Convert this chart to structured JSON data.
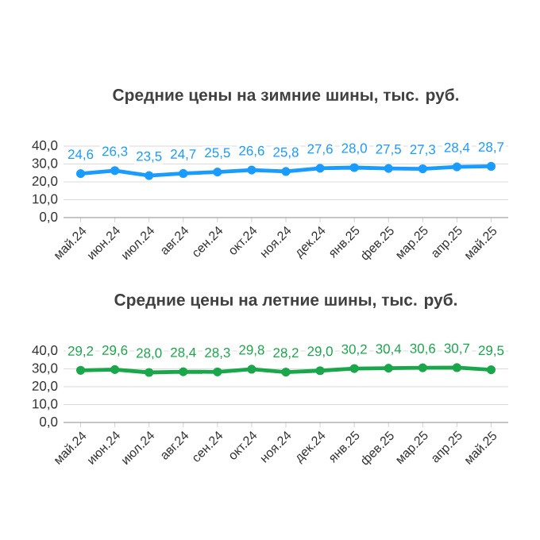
{
  "chart_data": [
    {
      "type": "line",
      "title": "Средние цены на зимние шины, тыс. руб.",
      "categories": [
        "май.24",
        "июн.24",
        "июл.24",
        "авг.24",
        "сен.24",
        "окт.24",
        "ноя.24",
        "дек.24",
        "янв.25",
        "фев.25",
        "мар.25",
        "апр.25",
        "май.25"
      ],
      "values": [
        24.6,
        26.3,
        23.5,
        24.7,
        25.5,
        26.6,
        25.8,
        27.6,
        28.0,
        27.5,
        27.3,
        28.4,
        28.7
      ],
      "value_labels": [
        "24,6",
        "26,3",
        "23,5",
        "24,7",
        "25,5",
        "26,6",
        "25,8",
        "27,6",
        "28,0",
        "27,5",
        "27,3",
        "28,4",
        "28,7"
      ],
      "color": "#1a9cff",
      "ylim": [
        0,
        40
      ],
      "yticks": [
        {
          "value": 0,
          "label": "0,0"
        },
        {
          "value": 10,
          "label": "10,0"
        },
        {
          "value": 20,
          "label": "20,0"
        },
        {
          "value": 30,
          "label": "30,0"
        },
        {
          "value": 40,
          "label": "40,0"
        }
      ],
      "grid": "y",
      "marker": "circle"
    },
    {
      "type": "line",
      "title": "Средние цены на летние шины, тыс. руб.",
      "categories": [
        "май.24",
        "июн.24",
        "июл.24",
        "авг.24",
        "сен.24",
        "окт.24",
        "ноя.24",
        "дек.24",
        "янв.25",
        "фев.25",
        "мар.25",
        "апр.25",
        "май.25"
      ],
      "values": [
        29.2,
        29.6,
        28.0,
        28.4,
        28.3,
        29.8,
        28.2,
        29.0,
        30.2,
        30.4,
        30.6,
        30.7,
        29.5
      ],
      "value_labels": [
        "29,2",
        "29,6",
        "28,0",
        "28,4",
        "28,3",
        "29,8",
        "28,2",
        "29,0",
        "30,2",
        "30,4",
        "30,6",
        "30,7",
        "29,5"
      ],
      "color": "#1aa64a",
      "ylim": [
        0,
        40
      ],
      "yticks": [
        {
          "value": 0,
          "label": "0,0"
        },
        {
          "value": 10,
          "label": "10,0"
        },
        {
          "value": 20,
          "label": "20,0"
        },
        {
          "value": 30,
          "label": "30,0"
        },
        {
          "value": 40,
          "label": "40,0"
        }
      ],
      "grid": "y",
      "marker": "circle"
    }
  ]
}
